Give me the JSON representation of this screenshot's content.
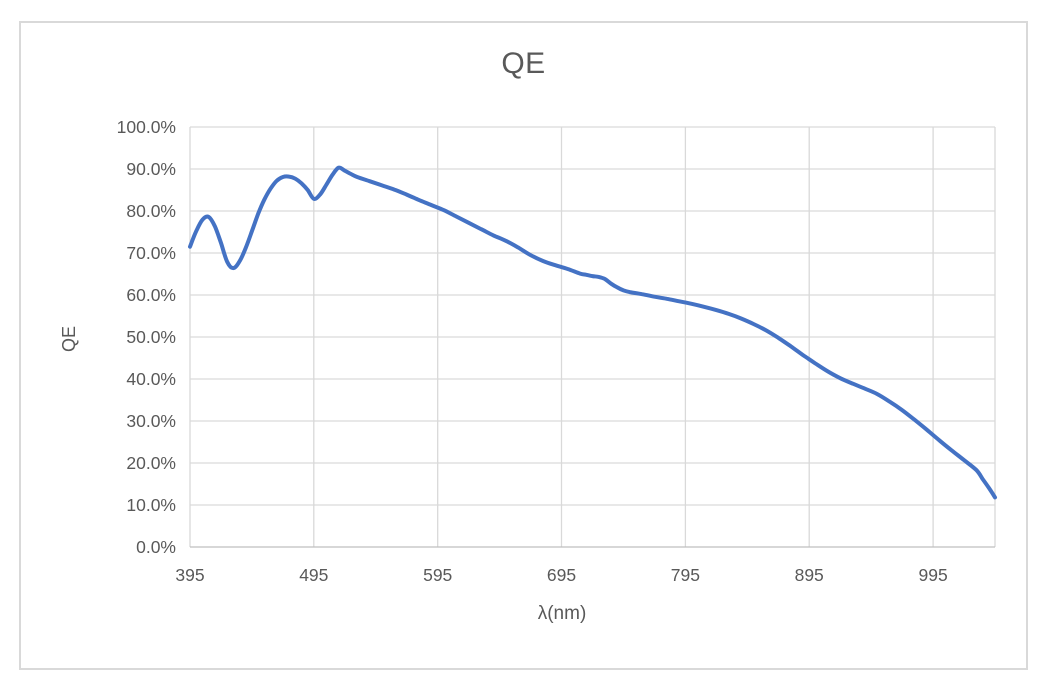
{
  "chart_data": {
    "type": "line",
    "title": "QE",
    "xlabel": "λ(nm)",
    "ylabel": "QE",
    "x_range": [
      395,
      1045
    ],
    "y_range": [
      0,
      100
    ],
    "x_ticks": [
      395,
      495,
      595,
      695,
      795,
      895,
      995
    ],
    "x_tick_labels": [
      "395",
      "495",
      "595",
      "695",
      "795",
      "895",
      "995"
    ],
    "y_ticks": [
      0,
      10,
      20,
      30,
      40,
      50,
      60,
      70,
      80,
      90,
      100
    ],
    "y_tick_labels": [
      "0.0%",
      "10.0%",
      "20.0%",
      "30.0%",
      "40.0%",
      "50.0%",
      "60.0%",
      "70.0%",
      "80.0%",
      "90.0%",
      "100.0%"
    ],
    "grid": true,
    "legend": "none",
    "series": [
      {
        "name": "QE",
        "color": "#4472C4",
        "points": [
          [
            395,
            71.5
          ],
          [
            400,
            75.2
          ],
          [
            405,
            77.9
          ],
          [
            410,
            78.6
          ],
          [
            415,
            76.4
          ],
          [
            420,
            72.4
          ],
          [
            425,
            67.9
          ],
          [
            430,
            66.4
          ],
          [
            435,
            68.0
          ],
          [
            440,
            71.2
          ],
          [
            445,
            75.2
          ],
          [
            450,
            79.3
          ],
          [
            455,
            82.7
          ],
          [
            460,
            85.3
          ],
          [
            465,
            87.2
          ],
          [
            470,
            88.1
          ],
          [
            475,
            88.2
          ],
          [
            480,
            87.7
          ],
          [
            485,
            86.6
          ],
          [
            490,
            85.0
          ],
          [
            495,
            82.9
          ],
          [
            500,
            83.9
          ],
          [
            505,
            86.2
          ],
          [
            510,
            88.6
          ],
          [
            515,
            90.3
          ],
          [
            520,
            89.6
          ],
          [
            525,
            88.8
          ],
          [
            530,
            88.1
          ],
          [
            540,
            87.1
          ],
          [
            550,
            86.1
          ],
          [
            560,
            85.1
          ],
          [
            570,
            83.9
          ],
          [
            580,
            82.6
          ],
          [
            590,
            81.4
          ],
          [
            600,
            80.2
          ],
          [
            610,
            78.7
          ],
          [
            620,
            77.2
          ],
          [
            630,
            75.7
          ],
          [
            640,
            74.2
          ],
          [
            650,
            72.9
          ],
          [
            660,
            71.3
          ],
          [
            670,
            69.5
          ],
          [
            680,
            68.1
          ],
          [
            690,
            67.1
          ],
          [
            700,
            66.2
          ],
          [
            710,
            65.1
          ],
          [
            715,
            64.8
          ],
          [
            720,
            64.5
          ],
          [
            725,
            64.3
          ],
          [
            730,
            63.8
          ],
          [
            735,
            62.7
          ],
          [
            740,
            61.8
          ],
          [
            745,
            61.1
          ],
          [
            750,
            60.7
          ],
          [
            760,
            60.2
          ],
          [
            770,
            59.6
          ],
          [
            780,
            59.1
          ],
          [
            790,
            58.5
          ],
          [
            800,
            57.9
          ],
          [
            810,
            57.2
          ],
          [
            820,
            56.4
          ],
          [
            830,
            55.5
          ],
          [
            840,
            54.4
          ],
          [
            850,
            53.1
          ],
          [
            860,
            51.6
          ],
          [
            870,
            49.8
          ],
          [
            880,
            47.8
          ],
          [
            890,
            45.7
          ],
          [
            895,
            44.7
          ],
          [
            900,
            43.7
          ],
          [
            910,
            41.8
          ],
          [
            920,
            40.2
          ],
          [
            930,
            38.9
          ],
          [
            940,
            37.7
          ],
          [
            950,
            36.4
          ],
          [
            960,
            34.6
          ],
          [
            970,
            32.6
          ],
          [
            980,
            30.3
          ],
          [
            990,
            27.9
          ],
          [
            1000,
            25.4
          ],
          [
            1010,
            23.0
          ],
          [
            1020,
            20.7
          ],
          [
            1030,
            18.3
          ],
          [
            1035,
            16.2
          ],
          [
            1040,
            14.1
          ],
          [
            1045,
            11.8
          ]
        ]
      }
    ]
  },
  "styles": {
    "text_color": "#595959",
    "gridline_color": "#d9d9d9",
    "axis_color": "#bfbfbf",
    "card_border_color": "#d9d9d9",
    "background": "#ffffff",
    "line_color": "#4472C4"
  }
}
